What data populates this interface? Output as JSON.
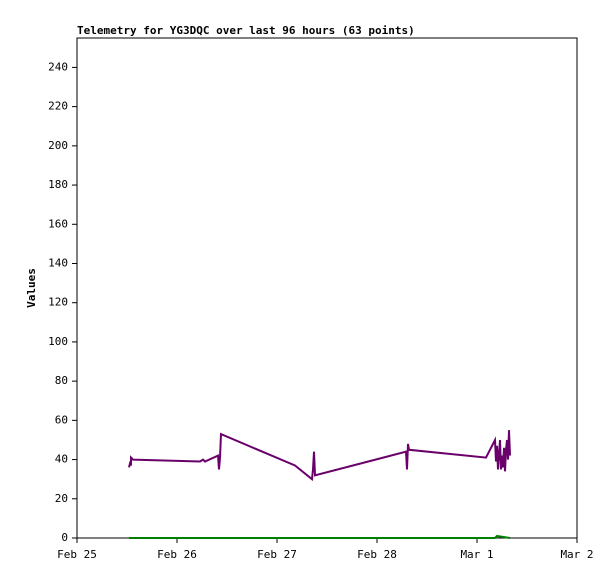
{
  "chart_data": {
    "type": "line",
    "title": "Telemetry for YG3DQC over last 96 hours (63 points)",
    "y_label": "Values",
    "x_is_days": true,
    "xlim": [
      0,
      5
    ],
    "xticks": [
      {
        "value": 0,
        "label": "Feb 25"
      },
      {
        "value": 1,
        "label": "Feb 26"
      },
      {
        "value": 2,
        "label": "Feb 27"
      },
      {
        "value": 3,
        "label": "Feb 28"
      },
      {
        "value": 4,
        "label": "Mar 1"
      },
      {
        "value": 5,
        "label": "Mar 2"
      }
    ],
    "ylim": [
      0,
      255
    ],
    "yticks": [
      0,
      20,
      40,
      60,
      80,
      100,
      120,
      140,
      160,
      180,
      200,
      220,
      240
    ],
    "grid": false,
    "series": [
      {
        "color": "#6a006a",
        "x": [
          0.52,
          0.53,
          0.54,
          0.54,
          0.56,
          1.23,
          1.26,
          1.28,
          1.41,
          1.42,
          1.43,
          1.44,
          2.18,
          2.35,
          2.36,
          2.37,
          2.38,
          3.29,
          3.3,
          3.31,
          3.32,
          4.09,
          4.18,
          4.19,
          4.2,
          4.21,
          4.23,
          4.24,
          4.25,
          4.26,
          4.27,
          4.28,
          4.29,
          4.3,
          4.31,
          4.32,
          4.33
        ],
        "values": [
          36,
          38,
          37,
          41,
          40,
          39,
          40,
          39,
          42,
          35,
          41,
          53,
          37,
          30,
          35,
          44,
          32,
          44,
          35,
          48,
          45,
          41,
          50,
          39,
          47,
          35,
          50,
          35,
          42,
          36,
          46,
          34,
          45,
          50,
          40,
          55,
          42
        ]
      },
      {
        "color": "#008000",
        "x": [
          0.52,
          1.44,
          2.35,
          3.3,
          4.18,
          4.2,
          4.33
        ],
        "values": [
          0,
          0,
          0,
          0,
          0,
          1,
          0
        ]
      }
    ]
  }
}
